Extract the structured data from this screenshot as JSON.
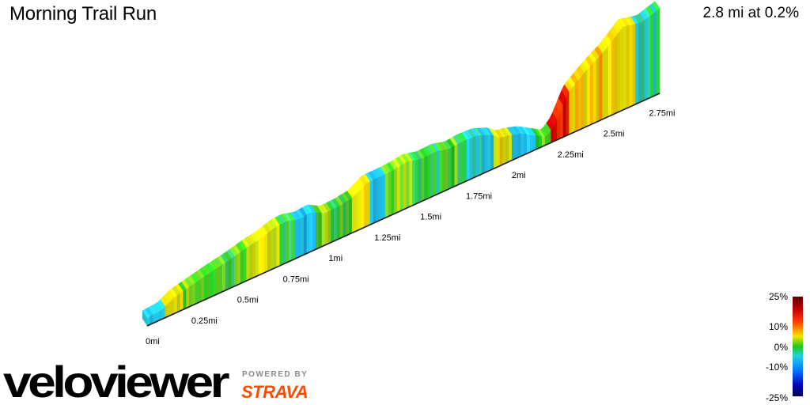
{
  "header": {
    "title": "Morning Trail Run",
    "summary": "2.8 mi at 0.2%"
  },
  "chart_data": {
    "type": "3d-elevation-profile",
    "title": "Morning Trail Run",
    "x_unit": "mi",
    "total_distance": 2.8,
    "x_ticks": [
      "0mi",
      "0.25mi",
      "0.5mi",
      "0.75mi",
      "1mi",
      "1.25mi",
      "1.5mi",
      "1.75mi",
      "2mi",
      "2.25mi",
      "2.5mi",
      "2.75mi"
    ],
    "x_tick_values": [
      0,
      0.25,
      0.5,
      0.75,
      1.0,
      1.25,
      1.5,
      1.75,
      2.0,
      2.25,
      2.5,
      2.75
    ],
    "gradient_scale": {
      "labels": [
        "25%",
        "10%",
        "0%",
        "-10%",
        "-25%"
      ],
      "values": [
        25,
        10,
        0,
        -10,
        -25
      ],
      "colors": [
        "#7a0000",
        "#e00000",
        "#f4e000",
        "#1ec81e",
        "#22d0e8",
        "#0008c0",
        "#000060"
      ]
    },
    "relative_height": {
      "x": [
        0,
        0.08,
        0.15,
        0.25,
        0.35,
        0.45,
        0.55,
        0.62,
        0.7,
        0.76,
        0.83,
        0.9,
        0.97,
        1.05,
        1.12,
        1.2,
        1.28,
        1.35,
        1.42,
        1.5,
        1.58,
        1.65,
        1.72,
        1.8,
        1.88,
        1.93,
        1.98,
        2.05,
        2.12,
        2.18,
        2.23,
        2.3,
        2.4,
        2.5,
        2.6,
        2.7,
        2.8
      ],
      "h": [
        0.0,
        0.1,
        0.6,
        0.9,
        1.2,
        1.45,
        1.8,
        1.95,
        2.3,
        2.35,
        2.1,
        2.2,
        1.7,
        1.75,
        1.9,
        2.5,
        2.5,
        2.55,
        2.7,
        2.45,
        2.5,
        2.25,
        2.35,
        2.3,
        1.9,
        1.4,
        1.3,
        1.0,
        0.45,
        0.0,
        0.6,
        2.4,
        3.4,
        4.2,
        5.3,
        5.0,
        5.4
      ]
    },
    "segment_gradients": [
      {
        "x": [
          0,
          0.1
        ],
        "grade": -4
      },
      {
        "x": [
          0.1,
          0.2
        ],
        "grade": 6
      },
      {
        "x": [
          0.2,
          0.4
        ],
        "grade": 2
      },
      {
        "x": [
          0.4,
          0.55
        ],
        "grade": 1
      },
      {
        "x": [
          0.55,
          0.72
        ],
        "grade": 5
      },
      {
        "x": [
          0.72,
          0.8
        ],
        "grade": 1
      },
      {
        "x": [
          0.8,
          0.92
        ],
        "grade": -6
      },
      {
        "x": [
          0.92,
          1.0
        ],
        "grade": 3
      },
      {
        "x": [
          1.0,
          1.12
        ],
        "grade": 1
      },
      {
        "x": [
          1.12,
          1.22
        ],
        "grade": 7
      },
      {
        "x": [
          1.22,
          1.3
        ],
        "grade": -4
      },
      {
        "x": [
          1.3,
          1.45
        ],
        "grade": 2
      },
      {
        "x": [
          1.45,
          1.6
        ],
        "grade": -1
      },
      {
        "x": [
          1.6,
          1.75
        ],
        "grade": 1
      },
      {
        "x": [
          1.75,
          1.9
        ],
        "grade": -4
      },
      {
        "x": [
          1.9,
          2.0
        ],
        "grade": 6
      },
      {
        "x": [
          2.0,
          2.12
        ],
        "grade": -6
      },
      {
        "x": [
          2.12,
          2.2
        ],
        "grade": 2
      },
      {
        "x": [
          2.2,
          2.3
        ],
        "grade": 16
      },
      {
        "x": [
          2.3,
          2.52
        ],
        "grade": 8
      },
      {
        "x": [
          2.52,
          2.66
        ],
        "grade": 7
      },
      {
        "x": [
          2.66,
          2.8
        ],
        "grade": -2
      }
    ]
  },
  "branding": {
    "logo_text": "veloviewer",
    "powered_by": "POWERED BY",
    "partner": "STRAVA",
    "colors": {
      "logo": "#000000",
      "accent": "#e8252b",
      "strava": "#fc4c02",
      "powered": "#8a8a8a"
    }
  }
}
